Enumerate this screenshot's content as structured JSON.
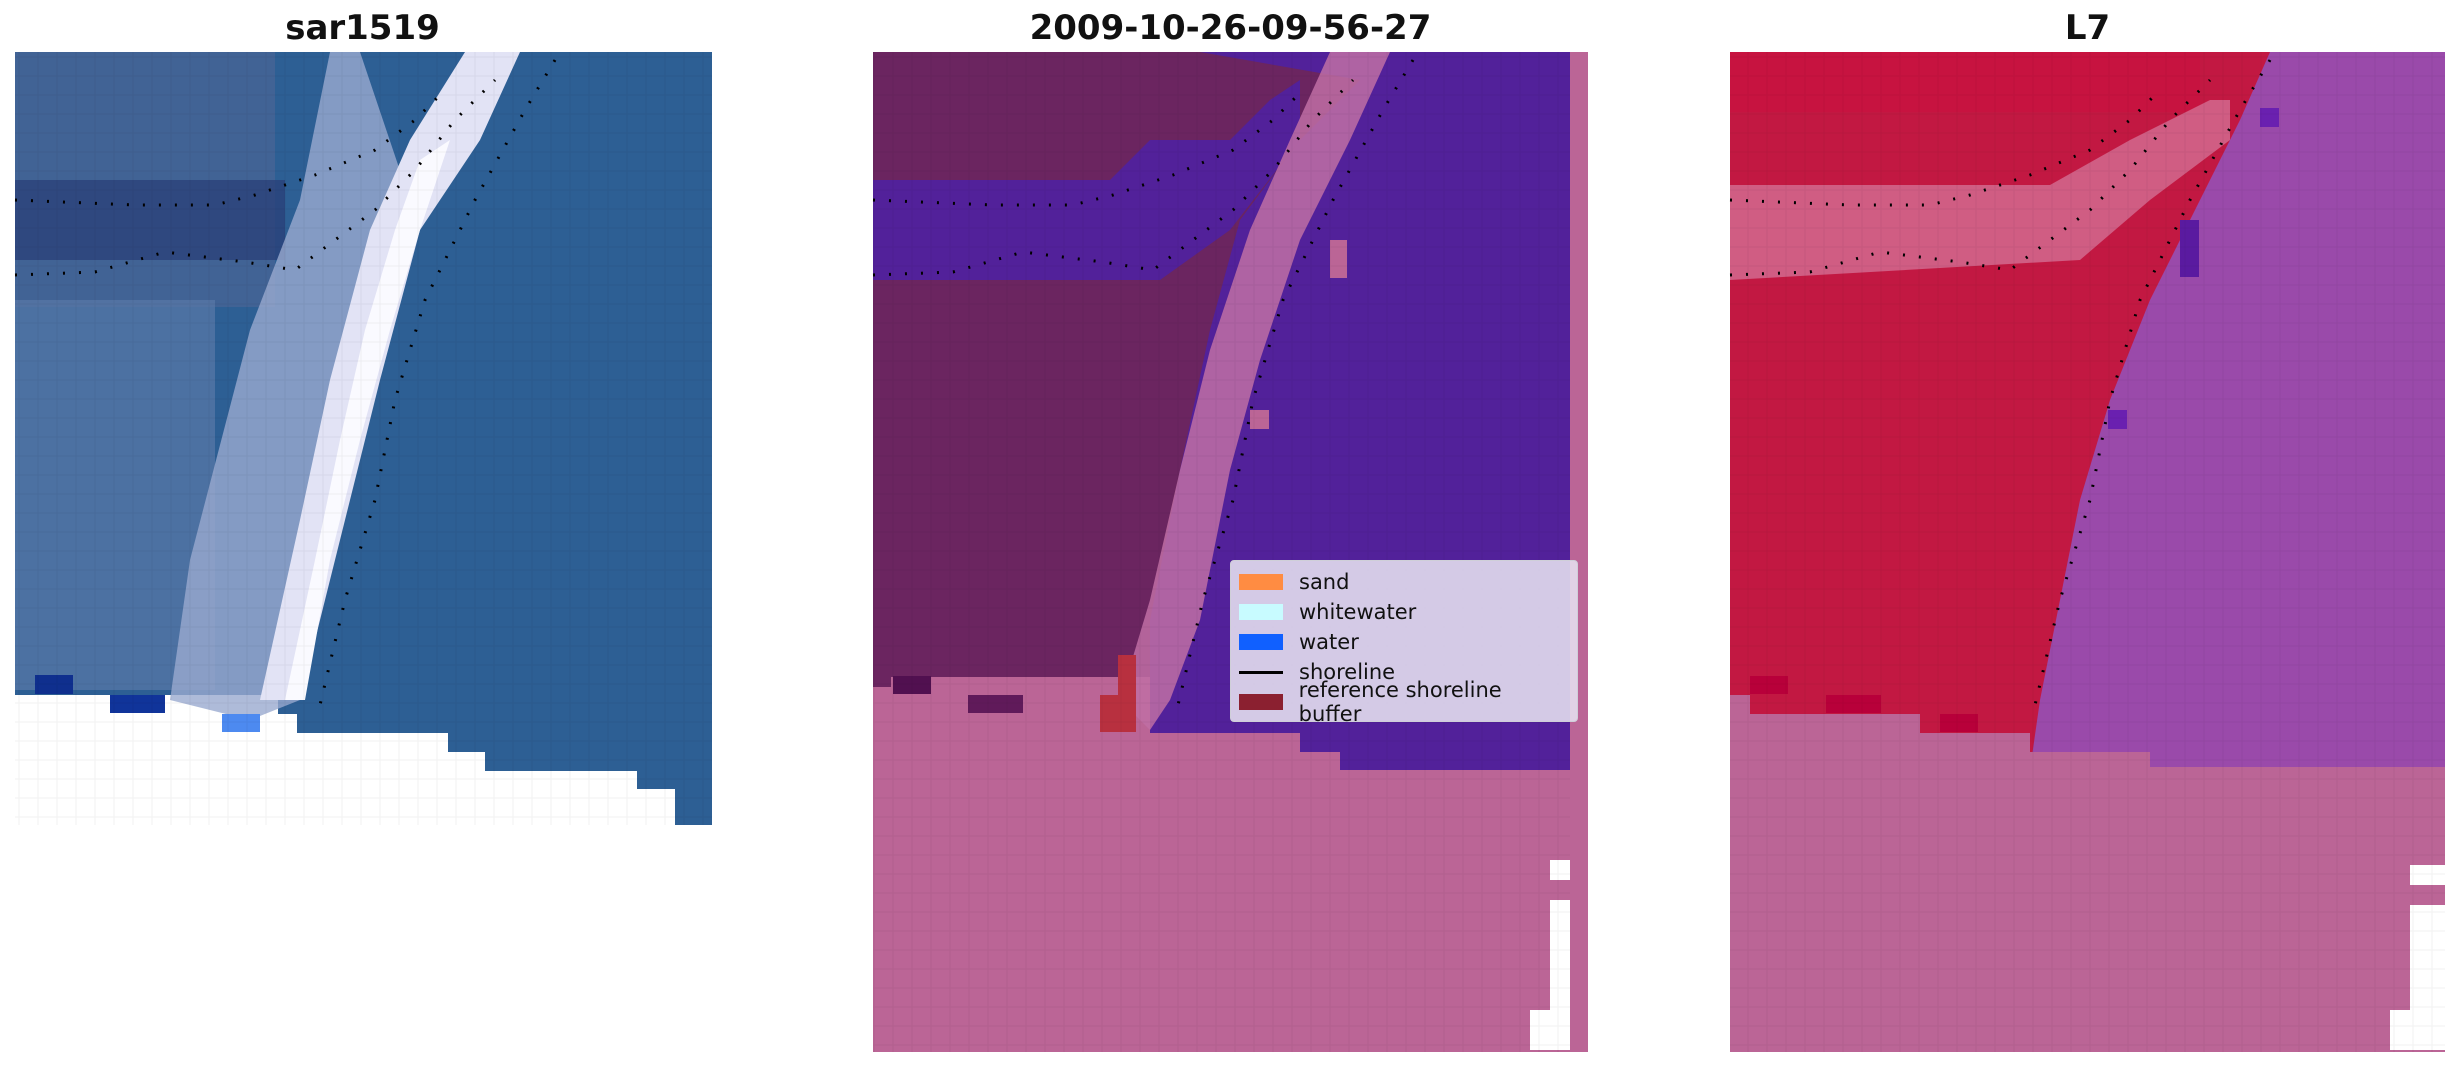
{
  "panels": [
    {
      "title": "sar1519"
    },
    {
      "title": "2009-10-26-09-56-27"
    },
    {
      "title": "L7"
    }
  ],
  "legend": {
    "items": [
      {
        "label": "sand",
        "color": "#ff8c42",
        "kind": "patch"
      },
      {
        "label": "whitewater",
        "color": "#c8fbff",
        "kind": "patch"
      },
      {
        "label": "water",
        "color": "#1060ff",
        "kind": "patch"
      },
      {
        "label": "shoreline",
        "color": "#000000",
        "kind": "line"
      },
      {
        "label": "reference shoreline buffer",
        "color": "#8b2030",
        "kind": "patch"
      }
    ]
  },
  "colors": {
    "rgb_water": "#2e5f92",
    "rgb_surf": "#f0f0ff",
    "class_land": "#6b2560",
    "class_water": "#52219a",
    "nodata": "#bb6596",
    "index_land": "#c0163c",
    "index_water": "#9a4aaa"
  }
}
